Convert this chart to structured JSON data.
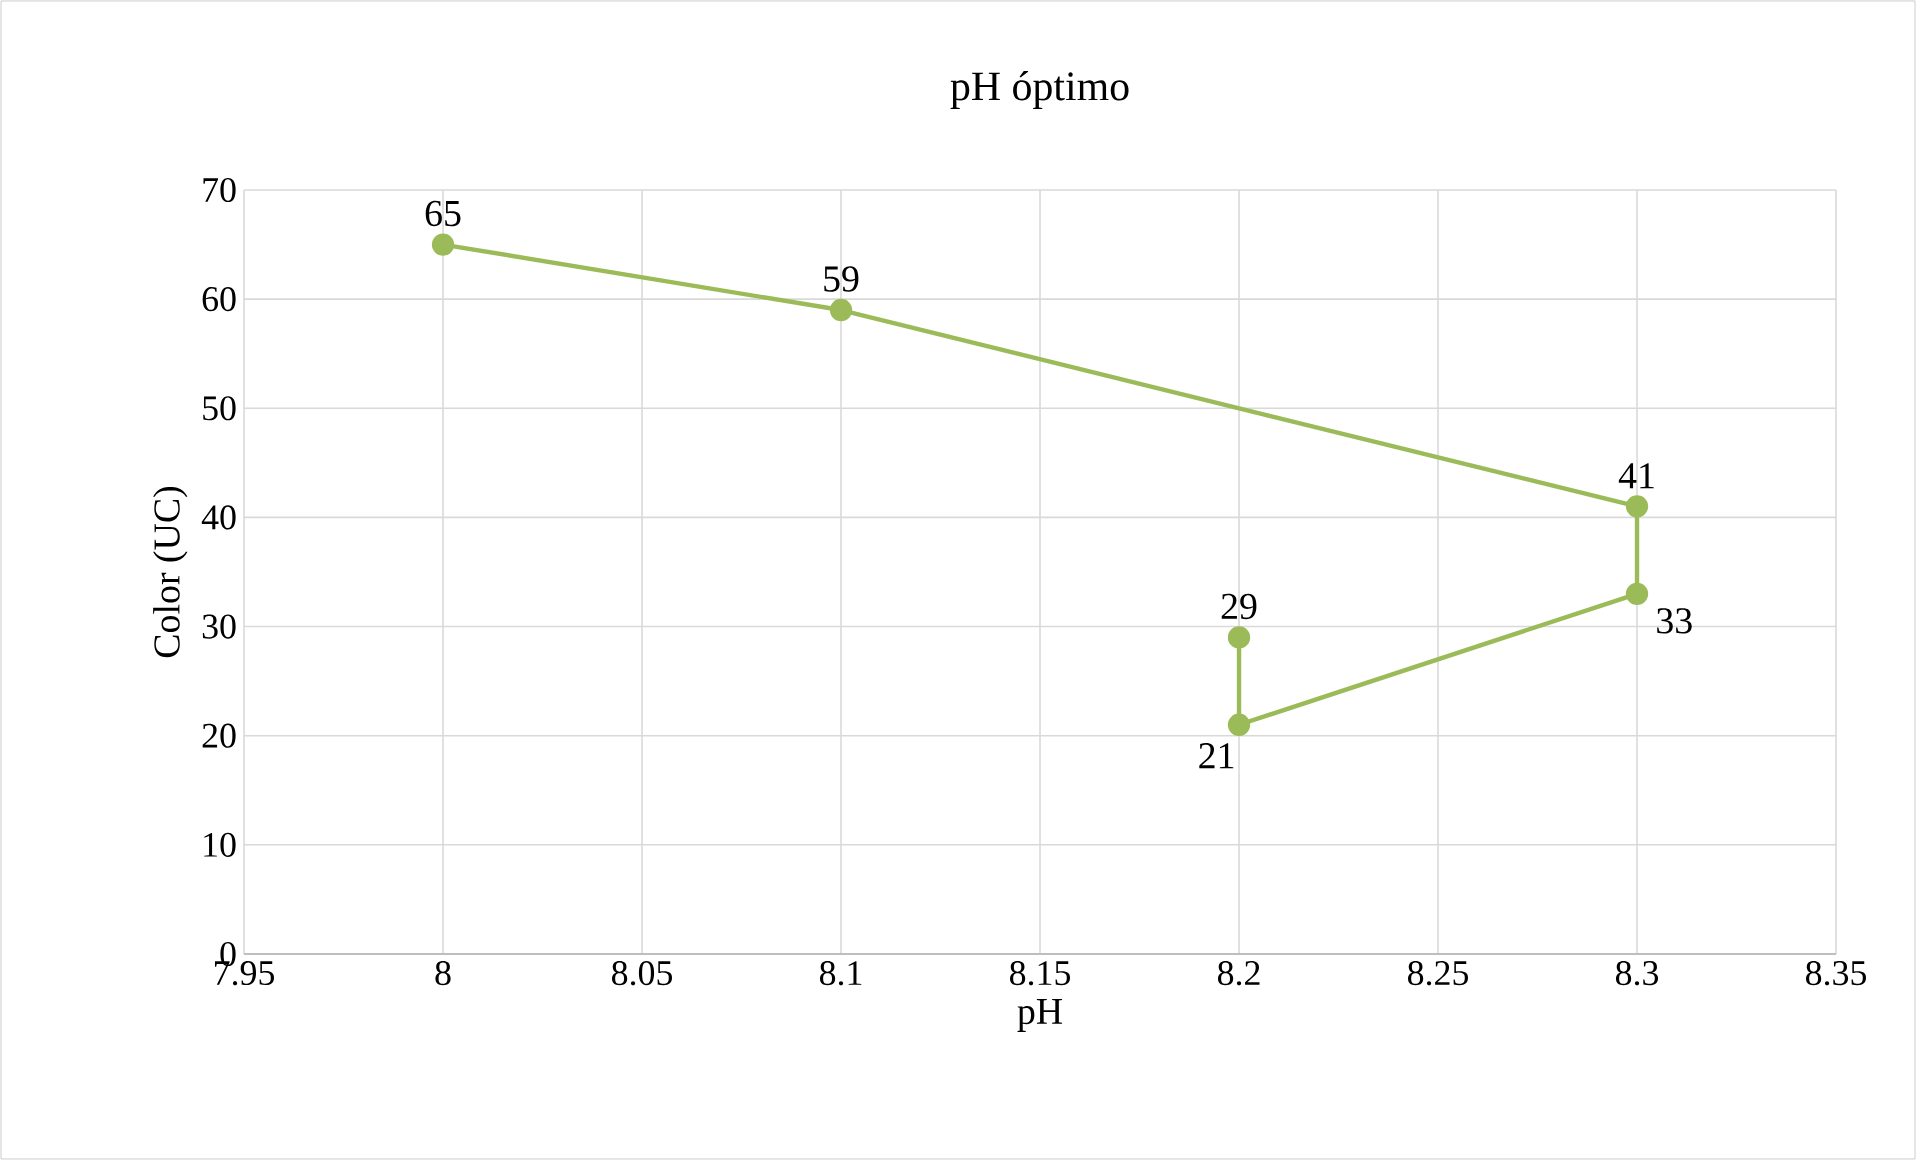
{
  "chart_data": {
    "type": "line",
    "title": "pH óptimo",
    "xlabel": "pH",
    "ylabel": "Color (UC)",
    "x": [
      8,
      8.1,
      8.3,
      8.3,
      8.2,
      8.2
    ],
    "values": [
      65,
      59,
      41,
      33,
      21,
      29
    ],
    "color": "#9bbb59",
    "marker": "circle",
    "line_style": "solid",
    "grid": true,
    "data_labels": true,
    "xlim": [
      7.95,
      8.35
    ],
    "xticks": [
      7.95,
      8,
      8.05,
      8.1,
      8.15,
      8.2,
      8.25,
      8.3,
      8.35
    ],
    "ylim": [
      0,
      70
    ],
    "yticks": [
      0,
      10,
      20,
      30,
      40,
      50,
      60,
      70
    ]
  }
}
